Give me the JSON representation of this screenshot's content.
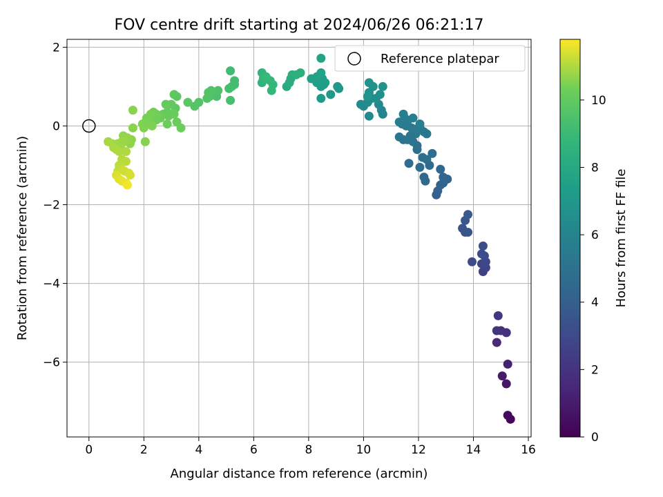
{
  "chart_data": {
    "type": "scatter",
    "title": "FOV centre drift starting at 2024/06/26 06:21:17",
    "xlabel": "Angular distance from reference (arcmin)",
    "ylabel": "Rotation from reference (arcmin)",
    "xlim": [
      -0.8,
      16.1
    ],
    "ylim": [
      -7.9,
      2.2
    ],
    "x_ticks": [
      0,
      2,
      4,
      6,
      8,
      10,
      12,
      14,
      16
    ],
    "y_ticks": [
      2,
      0,
      -2,
      -4,
      -6
    ],
    "grid": true,
    "legend": {
      "position": "top-right",
      "entries": [
        "Reference platepar"
      ]
    },
    "reference_point": {
      "x": 0,
      "y": 0
    },
    "colorbar": {
      "label": "Hours from first FF file",
      "range": [
        0,
        11.8
      ],
      "ticks": [
        0,
        2,
        4,
        6,
        8,
        10
      ],
      "colormap": "viridis"
    },
    "points": [
      [
        15.35,
        -7.45,
        0.2
      ],
      [
        15.25,
        -7.35,
        0.35
      ],
      [
        15.2,
        -6.55,
        0.8
      ],
      [
        15.05,
        -6.35,
        1.0
      ],
      [
        15.25,
        -6.05,
        1.2
      ],
      [
        14.85,
        -5.5,
        1.6
      ],
      [
        15.2,
        -5.25,
        1.8
      ],
      [
        15.0,
        -5.2,
        1.9
      ],
      [
        14.85,
        -5.2,
        2.0
      ],
      [
        14.9,
        -4.82,
        2.2
      ],
      [
        14.35,
        -3.7,
        2.6
      ],
      [
        14.45,
        -3.6,
        2.7
      ],
      [
        14.3,
        -3.5,
        2.8
      ],
      [
        14.45,
        -3.45,
        2.9
      ],
      [
        13.95,
        -3.45,
        3.0
      ],
      [
        14.4,
        -3.3,
        3.05
      ],
      [
        14.3,
        -3.25,
        3.1
      ],
      [
        14.35,
        -3.05,
        3.2
      ],
      [
        13.7,
        -2.7,
        3.4
      ],
      [
        13.6,
        -2.6,
        3.5
      ],
      [
        13.8,
        -2.7,
        3.55
      ],
      [
        13.7,
        -2.4,
        3.6
      ],
      [
        13.8,
        -2.25,
        3.7
      ],
      [
        12.65,
        -1.75,
        4.0
      ],
      [
        12.7,
        -1.65,
        4.1
      ],
      [
        12.8,
        -1.5,
        4.2
      ],
      [
        12.9,
        -1.45,
        4.25
      ],
      [
        13.05,
        -1.35,
        4.3
      ],
      [
        12.9,
        -1.3,
        4.35
      ],
      [
        12.8,
        -1.1,
        4.4
      ],
      [
        12.25,
        -1.4,
        4.45
      ],
      [
        12.2,
        -1.3,
        4.5
      ],
      [
        12.4,
        -1.0,
        4.6
      ],
      [
        12.05,
        -1.05,
        4.65
      ],
      [
        11.65,
        -0.95,
        4.7
      ],
      [
        12.5,
        -0.7,
        4.75
      ],
      [
        12.15,
        -0.8,
        4.8
      ],
      [
        12.3,
        -0.85,
        4.85
      ],
      [
        11.95,
        -0.6,
        4.9
      ],
      [
        11.95,
        -0.5,
        4.95
      ],
      [
        11.8,
        -0.4,
        5.0
      ],
      [
        11.6,
        -0.35,
        5.05
      ],
      [
        11.45,
        -0.35,
        5.1
      ],
      [
        11.3,
        -0.28,
        5.15
      ],
      [
        11.7,
        -0.25,
        5.2
      ],
      [
        11.9,
        -0.2,
        5.25
      ],
      [
        12.2,
        -0.15,
        5.3
      ],
      [
        12.3,
        -0.2,
        5.32
      ],
      [
        12.1,
        -0.1,
        5.35
      ],
      [
        12.0,
        -0.05,
        5.38
      ],
      [
        11.75,
        -0.05,
        5.4
      ],
      [
        11.55,
        0.0,
        5.42
      ],
      [
        11.4,
        0.05,
        5.45
      ],
      [
        11.3,
        0.1,
        5.5
      ],
      [
        11.6,
        0.12,
        5.55
      ],
      [
        11.5,
        0.2,
        5.6
      ],
      [
        11.8,
        0.2,
        5.65
      ],
      [
        11.45,
        0.3,
        5.7
      ],
      [
        12.05,
        0.05,
        5.72
      ],
      [
        10.7,
        0.3,
        6.0
      ],
      [
        10.65,
        0.4,
        6.1
      ],
      [
        10.55,
        0.55,
        6.2
      ],
      [
        10.2,
        0.25,
        6.25
      ],
      [
        10.0,
        0.5,
        6.3
      ],
      [
        9.9,
        0.55,
        6.35
      ],
      [
        10.15,
        0.6,
        6.4
      ],
      [
        10.3,
        0.7,
        6.45
      ],
      [
        10.2,
        0.75,
        6.5
      ],
      [
        10.45,
        0.7,
        6.55
      ],
      [
        10.6,
        0.8,
        6.6
      ],
      [
        10.2,
        0.85,
        6.65
      ],
      [
        10.35,
        1.0,
        6.7
      ],
      [
        10.2,
        1.1,
        6.75
      ],
      [
        10.7,
        1.0,
        6.8
      ],
      [
        10.15,
        0.75,
        6.85
      ],
      [
        9.1,
        0.95,
        7.0
      ],
      [
        9.05,
        1.0,
        7.05
      ],
      [
        8.8,
        0.8,
        7.1
      ],
      [
        8.45,
        0.7,
        7.2
      ],
      [
        8.45,
        1.0,
        7.25
      ],
      [
        8.55,
        1.05,
        7.3
      ],
      [
        8.3,
        1.1,
        7.35
      ],
      [
        8.5,
        1.2,
        7.4
      ],
      [
        8.6,
        1.1,
        7.45
      ],
      [
        8.1,
        1.2,
        7.5
      ],
      [
        8.3,
        1.25,
        7.55
      ],
      [
        8.45,
        1.35,
        7.6
      ],
      [
        8.45,
        1.72,
        7.7
      ],
      [
        7.2,
        1.0,
        8.1
      ],
      [
        7.3,
        1.1,
        8.15
      ],
      [
        7.35,
        1.2,
        8.2
      ],
      [
        7.4,
        1.3,
        8.25
      ],
      [
        7.7,
        1.35,
        8.3
      ],
      [
        7.55,
        1.3,
        8.35
      ],
      [
        6.3,
        1.1,
        8.6
      ],
      [
        6.35,
        1.2,
        8.65
      ],
      [
        6.3,
        1.35,
        8.7
      ],
      [
        6.6,
        1.15,
        8.75
      ],
      [
        6.65,
        0.9,
        8.8
      ],
      [
        6.7,
        1.05,
        8.85
      ],
      [
        6.45,
        1.25,
        8.9
      ],
      [
        5.15,
        1.4,
        9.1
      ],
      [
        5.3,
        1.15,
        9.15
      ],
      [
        5.2,
        1.0,
        9.2
      ],
      [
        5.3,
        1.05,
        9.25
      ],
      [
        5.1,
        0.95,
        9.3
      ],
      [
        5.15,
        0.65,
        9.35
      ],
      [
        4.65,
        0.75,
        9.45
      ],
      [
        4.7,
        0.9,
        9.5
      ],
      [
        4.4,
        0.75,
        9.55
      ],
      [
        4.35,
        0.85,
        9.6
      ],
      [
        4.45,
        0.9,
        9.62
      ],
      [
        4.3,
        0.7,
        9.65
      ],
      [
        4.0,
        0.6,
        9.7
      ],
      [
        3.85,
        0.5,
        9.75
      ],
      [
        3.6,
        0.6,
        9.8
      ],
      [
        3.2,
        0.75,
        9.85
      ],
      [
        3.1,
        0.8,
        9.9
      ],
      [
        3.15,
        0.45,
        9.95
      ],
      [
        3.0,
        0.55,
        10.0
      ],
      [
        2.8,
        0.55,
        10.05
      ],
      [
        2.85,
        0.35,
        10.1
      ],
      [
        2.7,
        0.3,
        10.12
      ],
      [
        2.9,
        0.25,
        10.15
      ],
      [
        3.1,
        0.3,
        10.18
      ],
      [
        2.85,
        0.05,
        10.2
      ],
      [
        3.2,
        0.1,
        10.22
      ],
      [
        3.35,
        -0.05,
        10.25
      ],
      [
        2.6,
        0.2,
        10.28
      ],
      [
        2.45,
        0.3,
        10.3
      ],
      [
        2.45,
        0.15,
        10.32
      ],
      [
        2.35,
        0.35,
        10.35
      ],
      [
        2.25,
        0.3,
        10.38
      ],
      [
        2.2,
        0.15,
        10.4
      ],
      [
        2.1,
        0.2,
        10.42
      ],
      [
        2.05,
        0.05,
        10.45
      ],
      [
        2.3,
        0.0,
        10.48
      ],
      [
        1.95,
        0.05,
        10.5
      ],
      [
        2.0,
        -0.05,
        10.52
      ],
      [
        2.05,
        -0.4,
        10.55
      ],
      [
        1.6,
        0.4,
        10.6
      ],
      [
        1.6,
        -0.05,
        10.62
      ],
      [
        1.55,
        -0.35,
        10.65
      ],
      [
        1.5,
        -0.45,
        10.68
      ],
      [
        1.25,
        -0.25,
        10.7
      ],
      [
        1.4,
        -0.3,
        10.72
      ],
      [
        1.3,
        -0.4,
        10.75
      ],
      [
        1.2,
        -0.4,
        10.78
      ],
      [
        1.05,
        -0.45,
        10.8
      ],
      [
        1.15,
        -0.55,
        10.82
      ],
      [
        0.95,
        -0.5,
        10.85
      ],
      [
        0.85,
        -0.45,
        10.88
      ],
      [
        0.7,
        -0.4,
        10.9
      ],
      [
        0.9,
        -0.55,
        10.92
      ],
      [
        1.0,
        -0.6,
        10.95
      ],
      [
        1.1,
        -0.65,
        10.98
      ],
      [
        1.35,
        -0.65,
        11.0
      ],
      [
        1.2,
        -0.85,
        11.05
      ],
      [
        1.35,
        -0.9,
        11.1
      ],
      [
        1.1,
        -1.0,
        11.15
      ],
      [
        1.05,
        -1.15,
        11.2
      ],
      [
        1.2,
        -1.1,
        11.25
      ],
      [
        1.3,
        -1.15,
        11.3
      ],
      [
        1.45,
        -1.2,
        11.35
      ],
      [
        1.5,
        -1.25,
        11.4
      ],
      [
        1.0,
        -1.25,
        11.45
      ],
      [
        1.1,
        -1.35,
        11.5
      ],
      [
        1.2,
        -1.4,
        11.55
      ],
      [
        1.35,
        -1.45,
        11.6
      ],
      [
        1.4,
        -1.5,
        11.7
      ]
    ]
  }
}
